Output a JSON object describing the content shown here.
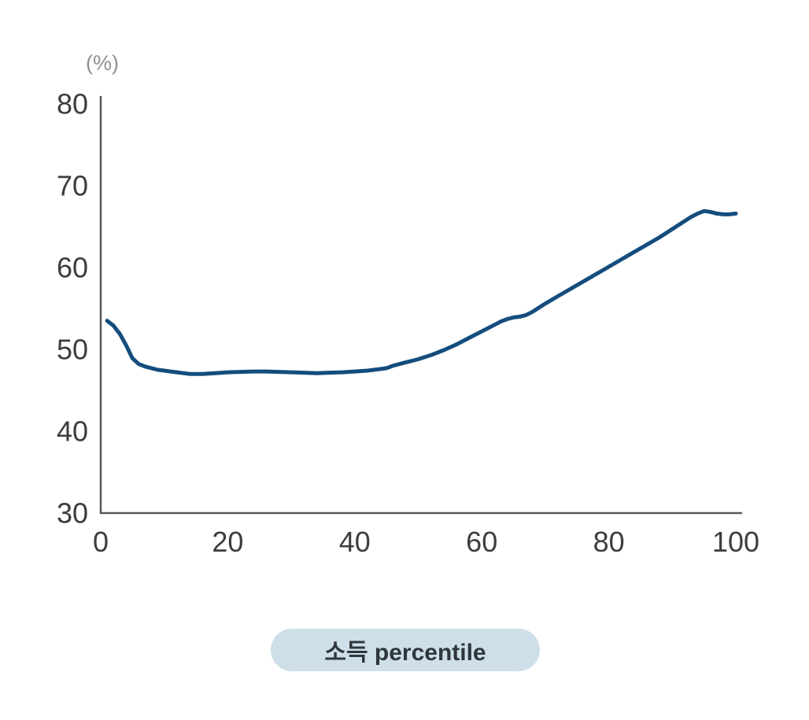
{
  "chart": {
    "unit_label": "(%)",
    "x_axis_label": "소득 percentile"
  },
  "colors": {
    "line": "#144d7d",
    "axis": "#595959",
    "tick_text": "#3d3d3d",
    "unit_text": "#8e9193",
    "pill_bg": "#cedfe9",
    "pill_text": "#2f373c",
    "background": "#ffffff"
  },
  "chart_data": {
    "type": "line",
    "title": "",
    "xlabel": "소득 percentile",
    "ylabel": "(%)",
    "xlim": [
      0,
      100
    ],
    "ylim": [
      30,
      80
    ],
    "x_ticks": [
      0,
      20,
      40,
      60,
      80,
      100
    ],
    "y_ticks": [
      30,
      40,
      50,
      60,
      70,
      80
    ],
    "grid": false,
    "legend": "none",
    "series": [
      {
        "name": "",
        "points": [
          [
            1,
            53.5
          ],
          [
            2,
            52.9
          ],
          [
            3,
            51.9
          ],
          [
            4,
            50.5
          ],
          [
            5,
            48.9
          ],
          [
            6,
            48.2
          ],
          [
            7,
            47.9
          ],
          [
            8,
            47.7
          ],
          [
            9,
            47.5
          ],
          [
            10,
            47.4
          ],
          [
            11,
            47.3
          ],
          [
            12,
            47.2
          ],
          [
            13,
            47.1
          ],
          [
            14,
            47.0
          ],
          [
            15,
            47.0
          ],
          [
            16,
            47.0
          ],
          [
            17,
            47.05
          ],
          [
            18,
            47.1
          ],
          [
            20,
            47.2
          ],
          [
            22,
            47.25
          ],
          [
            24,
            47.3
          ],
          [
            26,
            47.3
          ],
          [
            28,
            47.25
          ],
          [
            30,
            47.2
          ],
          [
            32,
            47.15
          ],
          [
            34,
            47.1
          ],
          [
            36,
            47.15
          ],
          [
            38,
            47.2
          ],
          [
            40,
            47.3
          ],
          [
            42,
            47.4
          ],
          [
            44,
            47.6
          ],
          [
            45,
            47.7
          ],
          [
            46,
            48.0
          ],
          [
            47,
            48.2
          ],
          [
            48,
            48.4
          ],
          [
            50,
            48.8
          ],
          [
            52,
            49.3
          ],
          [
            54,
            49.9
          ],
          [
            56,
            50.6
          ],
          [
            58,
            51.4
          ],
          [
            60,
            52.2
          ],
          [
            62,
            53.0
          ],
          [
            63,
            53.4
          ],
          [
            64,
            53.7
          ],
          [
            65,
            53.9
          ],
          [
            66,
            54.0
          ],
          [
            67,
            54.2
          ],
          [
            68,
            54.6
          ],
          [
            69,
            55.1
          ],
          [
            70,
            55.6
          ],
          [
            72,
            56.5
          ],
          [
            74,
            57.4
          ],
          [
            76,
            58.3
          ],
          [
            78,
            59.2
          ],
          [
            80,
            60.1
          ],
          [
            82,
            61.0
          ],
          [
            84,
            61.9
          ],
          [
            86,
            62.8
          ],
          [
            88,
            63.7
          ],
          [
            90,
            64.7
          ],
          [
            92,
            65.7
          ],
          [
            93,
            66.2
          ],
          [
            94,
            66.6
          ],
          [
            95,
            66.9
          ],
          [
            96,
            66.8
          ],
          [
            97,
            66.6
          ],
          [
            98,
            66.5
          ],
          [
            99,
            66.5
          ],
          [
            100,
            66.6
          ]
        ]
      }
    ]
  }
}
